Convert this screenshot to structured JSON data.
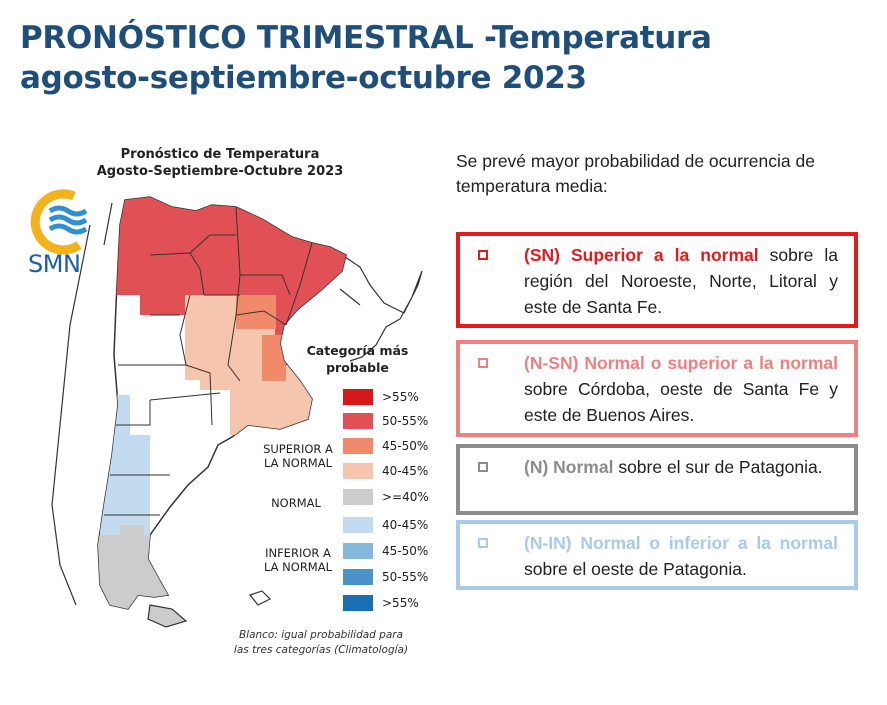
{
  "header": {
    "title_line1": "PRONÓSTICO TRIMESTRAL -Temperatura",
    "title_line2": "agosto-septiembre-octubre 2023"
  },
  "map": {
    "title_line1": "Pronóstico de Temperatura",
    "title_line2": "Agosto-Septiembre-Octubre 2023",
    "logo_text": "SMN",
    "legend_title_line1": "Categoría más",
    "legend_title_line2": "probable",
    "legend": [
      {
        "label": ">55%",
        "color": "#d7191c"
      },
      {
        "label": "50-55%",
        "color": "#e05055"
      },
      {
        "label": "45-50%",
        "color": "#f08a6a"
      },
      {
        "label": "40-45%",
        "color": "#f5c6ad"
      },
      {
        "label": ">=40%",
        "color": "#cccccc"
      },
      {
        "label": "40-45%",
        "color": "#c2dbee"
      },
      {
        "label": "45-50%",
        "color": "#85b8dc"
      },
      {
        "label": "50-55%",
        "color": "#4a92c8"
      },
      {
        "label": ">55%",
        "color": "#1a6eb3"
      }
    ],
    "group_superior_line1": "SUPERIOR A",
    "group_superior_line2": "LA NORMAL",
    "group_normal": "NORMAL",
    "group_inferior_line1": "INFERIOR A",
    "group_inferior_line2": "LA NORMAL",
    "footnote_line1": "Blanco: igual probabilidad para",
    "footnote_line2": "las tres categorías (Climatología)"
  },
  "text_panel": {
    "intro": "Se prevé mayor probabilidad de ocurrencia de temperatura media:",
    "items": [
      {
        "highlight": "(SN) Superior a la normal",
        "rest": " sobre la región del Noroeste, Norte, Litoral y este de Santa Fe.",
        "color": "#e41a1c"
      },
      {
        "highlight": "(N-SN) Normal o superior a la normal",
        "rest": " sobre Córdoba, oeste de  Santa Fe y este de Buenos Aires.",
        "color": "#f08080"
      },
      {
        "highlight": "(N) Normal",
        "rest": "  sobre el sur de Patagonia.",
        "color": "#8c8c8c"
      },
      {
        "highlight": "(N-IN) Normal o inferior  a la normal",
        "rest": " sobre el oeste de Patagonia.",
        "color": "#a9cbe8"
      }
    ]
  }
}
